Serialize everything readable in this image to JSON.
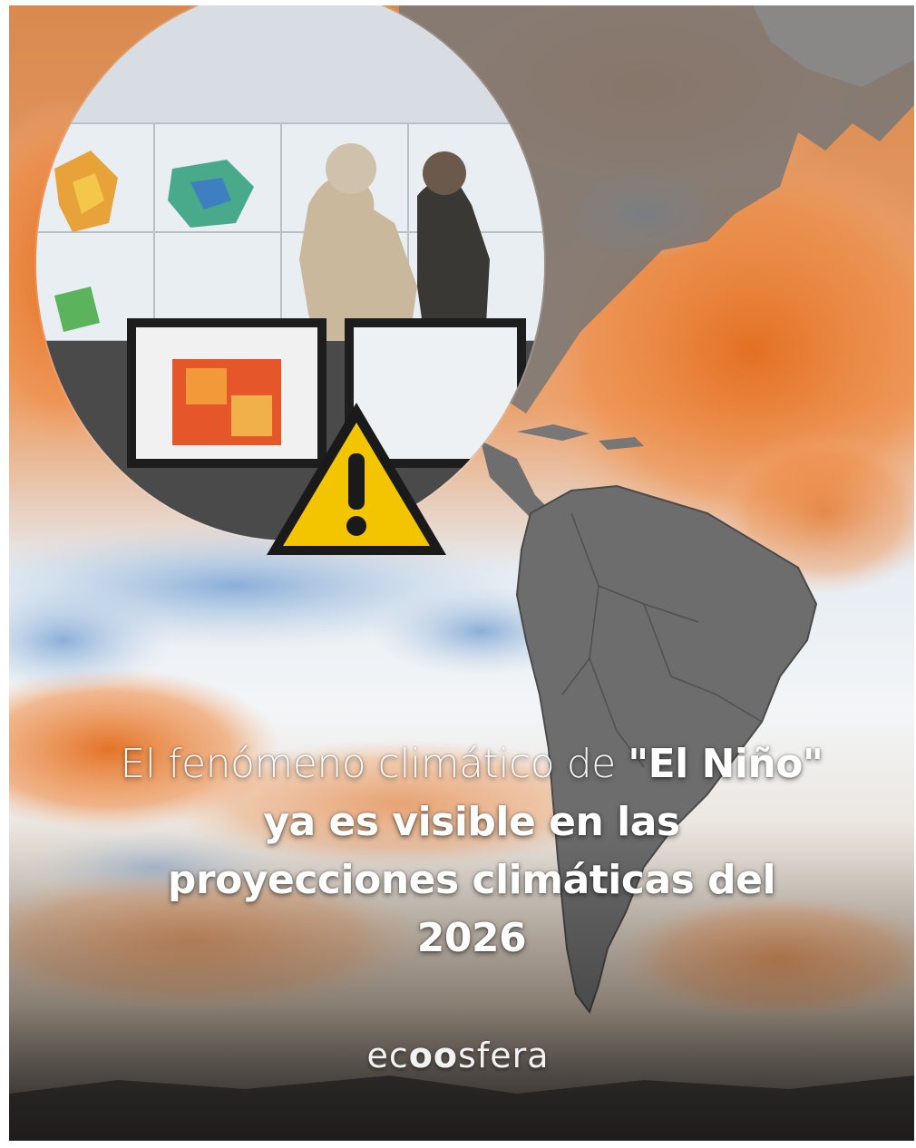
{
  "headline": {
    "part1": "El fenómeno climático de ",
    "part2": "\"El Niño\" ya es visible en las proyecciones climáticas del 2026"
  },
  "brand": {
    "pre": "ec",
    "mid": "oo",
    "post": "sfera"
  },
  "icons": {
    "warning": "warning-triangle-icon"
  },
  "colors": {
    "warm_anomaly": "#e8772e",
    "cool_anomaly": "#8fb2d8",
    "land": "#6f6f6f",
    "warning_yellow": "#f2c500"
  }
}
